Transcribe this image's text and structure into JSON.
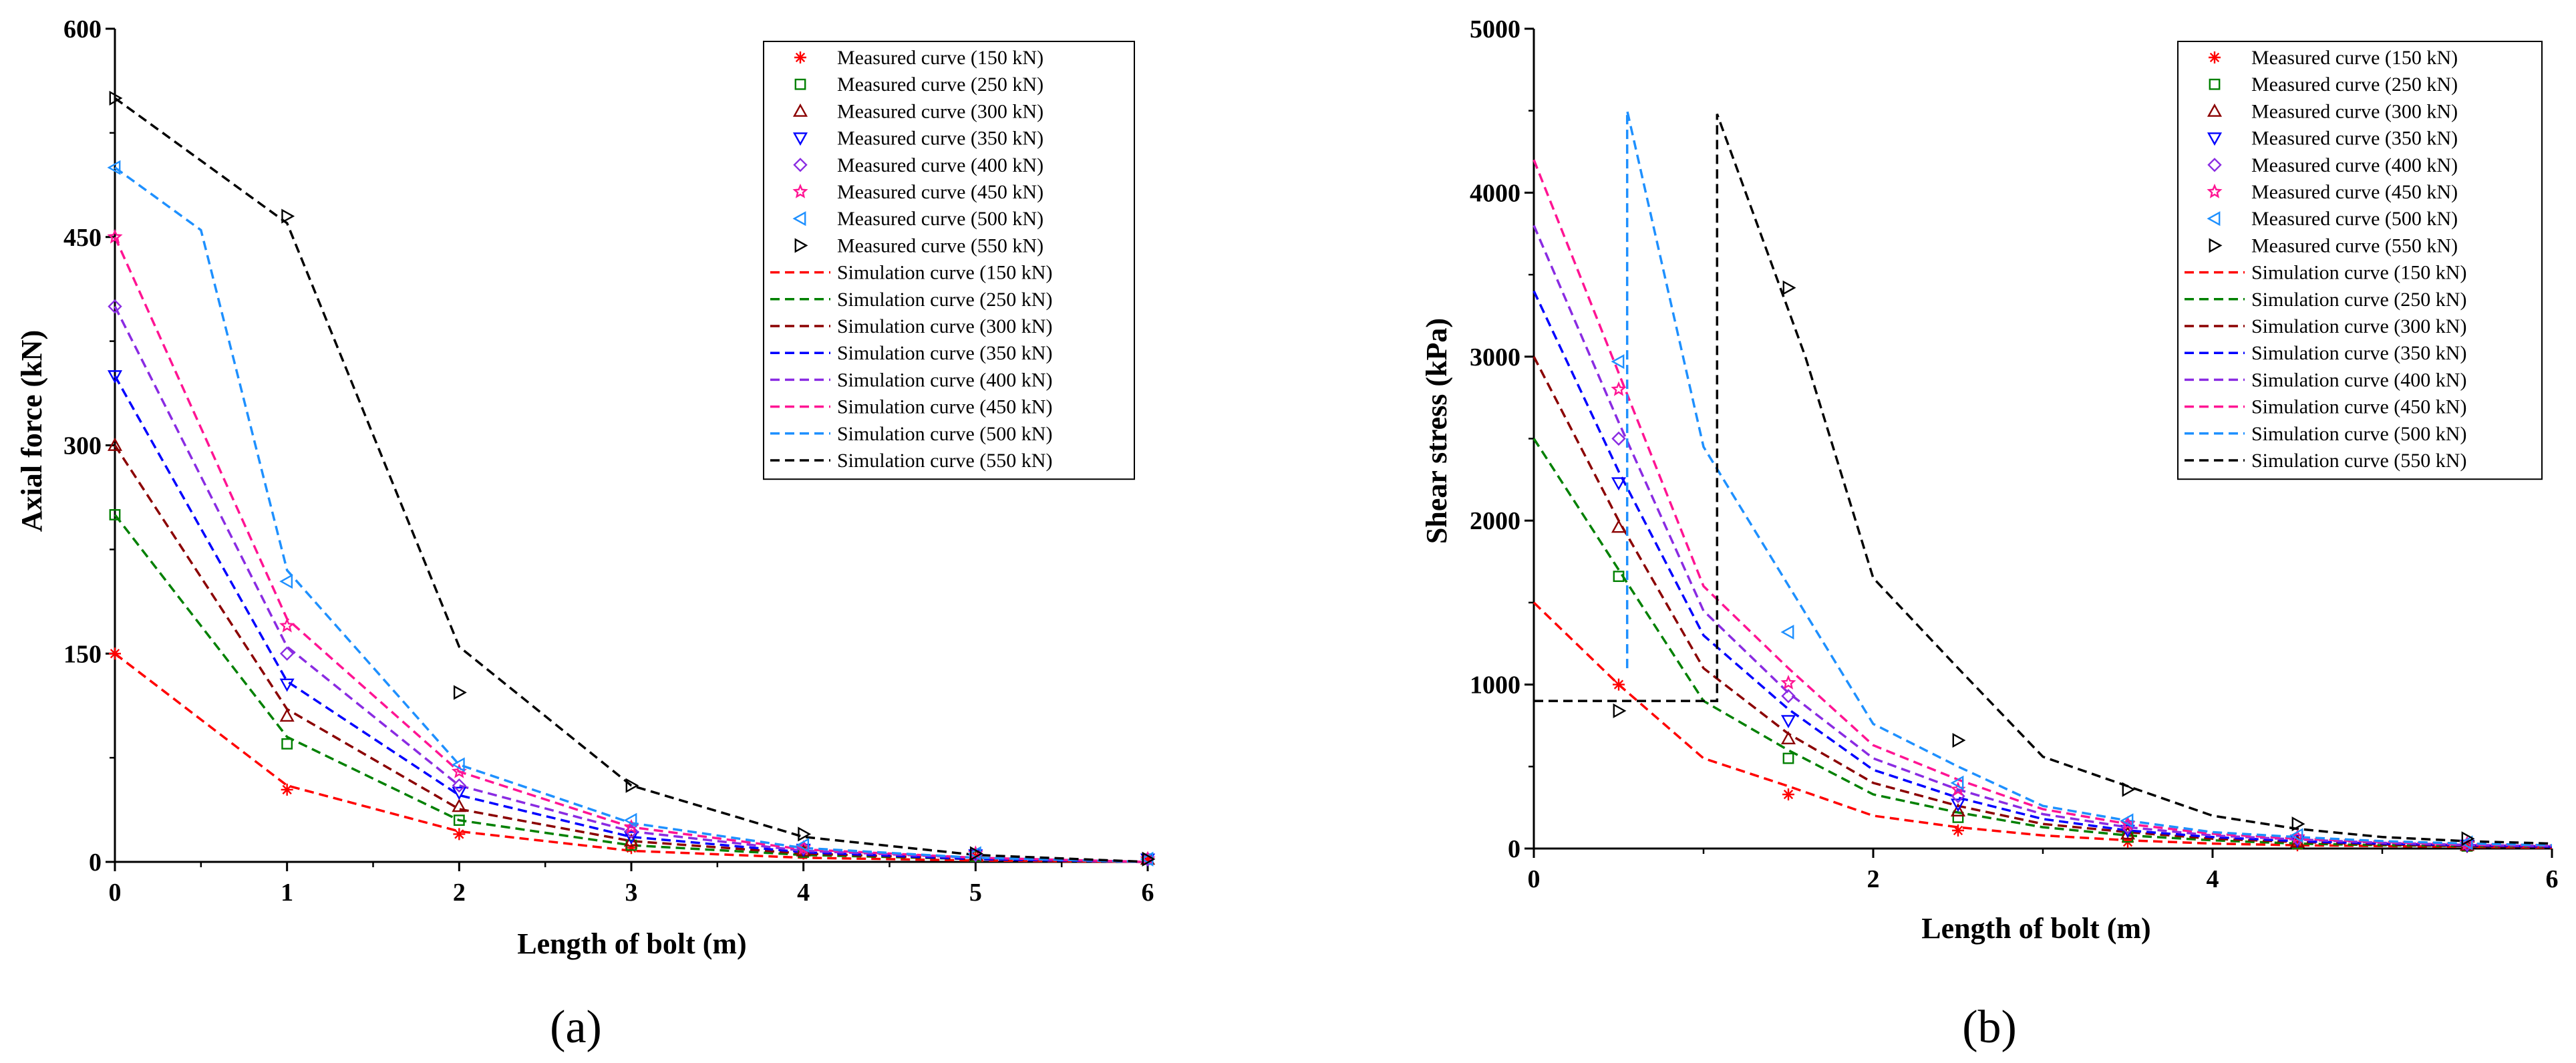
{
  "chart_data": [
    {
      "type": "line",
      "caption": "(a)",
      "xlabel": "Length of bolt (m)",
      "ylabel": "Axial force (kN)",
      "xlim": [
        0,
        6
      ],
      "ylim": [
        0,
        600
      ],
      "xticks": [
        0,
        1,
        2,
        3,
        4,
        5,
        6
      ],
      "yticks": [
        0,
        150,
        300,
        450,
        600
      ],
      "measured": [
        {
          "name": "Measured curve (150 kN)",
          "color": "#ff0000",
          "marker": "asterisk",
          "x": [
            0,
            1,
            2,
            3,
            4,
            5,
            6
          ],
          "y": [
            150,
            52,
            20,
            10,
            6,
            4,
            2
          ]
        },
        {
          "name": "Measured curve (250 kN)",
          "color": "#008000",
          "marker": "square",
          "x": [
            0,
            1,
            2,
            3,
            4,
            5,
            6
          ],
          "y": [
            250,
            85,
            30,
            12,
            7,
            4,
            2
          ]
        },
        {
          "name": "Measured curve (300 kN)",
          "color": "#8b0000",
          "marker": "triangle-up",
          "x": [
            0,
            1,
            2,
            3,
            4,
            5,
            6
          ],
          "y": [
            300,
            105,
            40,
            15,
            8,
            5,
            2
          ]
        },
        {
          "name": "Measured curve (350 kN)",
          "color": "#0000ff",
          "marker": "triangle-down",
          "x": [
            0,
            1,
            2,
            3,
            4,
            5,
            6
          ],
          "y": [
            350,
            128,
            50,
            18,
            9,
            5,
            2
          ]
        },
        {
          "name": "Measured curve (400 kN)",
          "color": "#8a2be2",
          "marker": "diamond",
          "x": [
            0,
            1,
            2,
            3,
            4,
            5,
            6
          ],
          "y": [
            400,
            150,
            55,
            22,
            10,
            5,
            2
          ]
        },
        {
          "name": "Measured curve (450 kN)",
          "color": "#ff1493",
          "marker": "star",
          "x": [
            0,
            1,
            2,
            3,
            4,
            5,
            6
          ],
          "y": [
            450,
            170,
            65,
            25,
            10,
            6,
            2
          ]
        },
        {
          "name": "Measured curve (500 kN)",
          "color": "#1e90ff",
          "marker": "triangle-left",
          "x": [
            0,
            1,
            2,
            3,
            4,
            5,
            6
          ],
          "y": [
            500,
            202,
            70,
            30,
            12,
            6,
            2
          ]
        },
        {
          "name": "Measured curve (550 kN)",
          "color": "#000000",
          "marker": "triangle-right",
          "x": [
            0,
            1,
            2,
            3,
            4,
            5,
            6
          ],
          "y": [
            550,
            465,
            122,
            55,
            20,
            6,
            2
          ]
        }
      ],
      "simulation": [
        {
          "name": "Simulation curve (150 kN)",
          "color": "#ff0000",
          "x": [
            0,
            1,
            2,
            3,
            4,
            5,
            6
          ],
          "y": [
            150,
            55,
            22,
            8,
            3,
            1,
            0
          ]
        },
        {
          "name": "Simulation curve (250 kN)",
          "color": "#008000",
          "x": [
            0,
            1,
            2,
            3,
            4,
            5,
            6
          ],
          "y": [
            250,
            90,
            30,
            12,
            5,
            2,
            0
          ]
        },
        {
          "name": "Simulation curve (300 kN)",
          "color": "#8b0000",
          "x": [
            0,
            1,
            2,
            3,
            4,
            5,
            6
          ],
          "y": [
            300,
            110,
            38,
            15,
            6,
            2,
            0
          ]
        },
        {
          "name": "Simulation curve (350 kN)",
          "color": "#0000ff",
          "x": [
            0,
            1,
            2,
            3,
            4,
            5,
            6
          ],
          "y": [
            350,
            130,
            48,
            18,
            7,
            2,
            0
          ]
        },
        {
          "name": "Simulation curve (400 kN)",
          "color": "#8a2be2",
          "x": [
            0,
            1,
            2,
            3,
            4,
            5,
            6
          ],
          "y": [
            400,
            155,
            55,
            22,
            8,
            3,
            0
          ]
        },
        {
          "name": "Simulation curve (450 kN)",
          "color": "#ff1493",
          "x": [
            0,
            1,
            2,
            3,
            4,
            5,
            6
          ],
          "y": [
            450,
            175,
            65,
            25,
            9,
            3,
            0
          ]
        },
        {
          "name": "Simulation curve (500 kN)",
          "color": "#1e90ff",
          "x": [
            0,
            0.5,
            1,
            2,
            3,
            4,
            5,
            6
          ],
          "y": [
            500,
            455,
            210,
            70,
            28,
            10,
            3,
            0
          ]
        },
        {
          "name": "Simulation curve (550 kN)",
          "color": "#000000",
          "x": [
            0,
            1,
            2,
            3,
            4,
            5,
            6
          ],
          "y": [
            550,
            460,
            155,
            55,
            18,
            5,
            0
          ]
        }
      ]
    },
    {
      "type": "line",
      "caption": "(b)",
      "xlabel": "Length of bolt (m)",
      "ylabel": "Shear stress (kPa)",
      "xlim": [
        0,
        6
      ],
      "ylim": [
        0,
        5000
      ],
      "xticks": [
        0,
        2,
        4,
        6
      ],
      "yticks": [
        0,
        1000,
        2000,
        3000,
        4000,
        5000
      ],
      "measured": [
        {
          "name": "Measured curve (150 kN)",
          "color": "#ff0000",
          "marker": "asterisk",
          "x": [
            0.5,
            1.5,
            2.5,
            3.5,
            4.5,
            5.5
          ],
          "y": [
            1000,
            330,
            110,
            40,
            20,
            10
          ]
        },
        {
          "name": "Measured curve (250 kN)",
          "color": "#008000",
          "marker": "square",
          "x": [
            0.5,
            1.5,
            2.5,
            3.5,
            4.5,
            5.5
          ],
          "y": [
            1660,
            550,
            190,
            70,
            30,
            15
          ]
        },
        {
          "name": "Measured curve (300 kN)",
          "color": "#8b0000",
          "marker": "triangle-up",
          "x": [
            0.5,
            1.5,
            2.5,
            3.5,
            4.5,
            5.5
          ],
          "y": [
            1960,
            670,
            230,
            90,
            40,
            20
          ]
        },
        {
          "name": "Measured curve (350 kN)",
          "color": "#0000ff",
          "marker": "triangle-down",
          "x": [
            0.5,
            1.5,
            2.5,
            3.5,
            4.5,
            5.5
          ],
          "y": [
            2230,
            780,
            270,
            110,
            50,
            20
          ]
        },
        {
          "name": "Measured curve (400 kN)",
          "color": "#8a2be2",
          "marker": "diamond",
          "x": [
            0.5,
            1.5,
            2.5,
            3.5,
            4.5,
            5.5
          ],
          "y": [
            2500,
            930,
            320,
            130,
            60,
            25
          ]
        },
        {
          "name": "Measured curve (450 kN)",
          "color": "#ff1493",
          "marker": "star",
          "x": [
            0.5,
            1.5,
            2.5,
            3.5,
            4.5,
            5.5
          ],
          "y": [
            2800,
            1010,
            360,
            150,
            70,
            30
          ]
        },
        {
          "name": "Measured curve (500 kN)",
          "color": "#1e90ff",
          "marker": "triangle-left",
          "x": [
            0.5,
            1.5,
            2.5,
            3.5,
            4.5,
            5.5
          ],
          "y": [
            2970,
            1320,
            400,
            170,
            80,
            35
          ]
        },
        {
          "name": "Measured curve (550 kN)",
          "color": "#000000",
          "marker": "triangle-right",
          "x": [
            0.5,
            1.5,
            2.5,
            3.5,
            4.5,
            5.5
          ],
          "y": [
            840,
            3420,
            660,
            360,
            150,
            60
          ]
        }
      ],
      "simulation": [
        {
          "name": "Simulation curve (150 kN)",
          "color": "#ff0000",
          "x": [
            0,
            0.5,
            1,
            1.5,
            2,
            2.5,
            3,
            3.5,
            4,
            4.5,
            5,
            5.5,
            6
          ],
          "y": [
            1500,
            1000,
            550,
            380,
            200,
            130,
            80,
            50,
            30,
            20,
            15,
            10,
            5
          ]
        },
        {
          "name": "Simulation curve (250 kN)",
          "color": "#008000",
          "x": [
            0,
            0.5,
            1,
            1.5,
            2,
            2.5,
            3,
            3.5,
            4,
            4.5,
            5,
            5.5,
            6
          ],
          "y": [
            2500,
            1700,
            900,
            600,
            330,
            220,
            130,
            80,
            50,
            30,
            20,
            15,
            10
          ]
        },
        {
          "name": "Simulation curve (300 kN)",
          "color": "#8b0000",
          "x": [
            0,
            0.5,
            1,
            1.5,
            2,
            2.5,
            3,
            3.5,
            4,
            4.5,
            5,
            5.5,
            6
          ],
          "y": [
            3000,
            2000,
            1100,
            700,
            400,
            260,
            150,
            100,
            60,
            40,
            25,
            15,
            10
          ]
        },
        {
          "name": "Simulation curve (350 kN)",
          "color": "#0000ff",
          "x": [
            0,
            0.5,
            1,
            1.5,
            2,
            2.5,
            3,
            3.5,
            4,
            4.5,
            5,
            5.5,
            6
          ],
          "y": [
            3400,
            2300,
            1300,
            850,
            480,
            310,
            180,
            110,
            70,
            45,
            30,
            20,
            12
          ]
        },
        {
          "name": "Simulation curve (400 kN)",
          "color": "#8a2be2",
          "x": [
            0,
            0.5,
            1,
            1.5,
            2,
            2.5,
            3,
            3.5,
            4,
            4.5,
            5,
            5.5,
            6
          ],
          "y": [
            3800,
            2600,
            1450,
            950,
            550,
            360,
            210,
            130,
            80,
            55,
            35,
            22,
            15
          ]
        },
        {
          "name": "Simulation curve (450 kN)",
          "color": "#ff1493",
          "x": [
            0,
            0.5,
            1,
            1.5,
            2,
            2.5,
            3,
            3.5,
            4,
            4.5,
            5,
            5.5,
            6
          ],
          "y": [
            4200,
            2900,
            1600,
            1100,
            630,
            420,
            240,
            150,
            90,
            60,
            40,
            25,
            18
          ]
        },
        {
          "name": "Simulation curve (500 kN)",
          "color": "#1e90ff",
          "x": [
            0.55,
            0.55,
            0.55,
            1,
            2,
            2.5,
            3,
            3.5,
            4,
            4.5,
            5,
            5.5,
            6
          ],
          "y": [
            1100,
            3000,
            4500,
            2450,
            760,
            500,
            260,
            170,
            100,
            70,
            45,
            30,
            20
          ]
        },
        {
          "name": "Simulation curve (550 kN)",
          "color": "#000000",
          "x": [
            0,
            1.08,
            1.08,
            1.6,
            2,
            2.5,
            3,
            3.5,
            4,
            4.5,
            5,
            5.5,
            6
          ],
          "y": [
            900,
            900,
            4480,
            3000,
            1650,
            1100,
            560,
            380,
            200,
            120,
            70,
            45,
            30
          ]
        }
      ]
    }
  ]
}
